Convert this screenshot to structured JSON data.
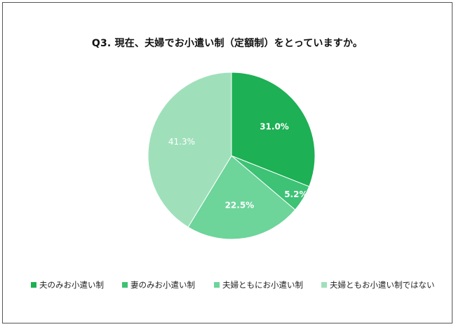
{
  "chart_data": {
    "type": "pie",
    "title": "Q3. 現在、夫婦でお小遣い制（定額制）をとっていますか。",
    "categories": [
      "夫のみお小遣い制",
      "妻のみお小遣い制",
      "夫婦ともにお小遣い制",
      "夫婦ともお小遣い制ではない"
    ],
    "values": [
      31.0,
      5.2,
      22.5,
      41.3
    ],
    "value_labels": [
      "31.0%",
      "5.2%",
      "22.5%",
      "41.3%"
    ],
    "colors": [
      "#1db054",
      "#3dc276",
      "#6dd49a",
      "#9fe0bb"
    ],
    "start_angle": "12 o'clock",
    "direction": "clockwise",
    "legend": "bottom"
  }
}
